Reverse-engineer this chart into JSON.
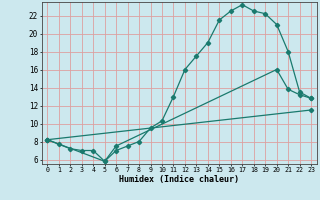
{
  "xlabel": "Humidex (Indice chaleur)",
  "bg_color": "#cce8ee",
  "grid_color": "#dda0a0",
  "line_color": "#1a7a6e",
  "xlim": [
    -0.5,
    23.5
  ],
  "ylim": [
    5.5,
    23.5
  ],
  "xticks": [
    0,
    1,
    2,
    3,
    4,
    5,
    6,
    7,
    8,
    9,
    10,
    11,
    12,
    13,
    14,
    15,
    16,
    17,
    18,
    19,
    20,
    21,
    22,
    23
  ],
  "yticks": [
    6,
    8,
    10,
    12,
    14,
    16,
    18,
    20,
    22
  ],
  "line1_x": [
    0,
    1,
    2,
    3,
    4,
    5,
    6,
    7,
    8,
    9,
    10,
    11,
    12,
    13,
    14,
    15,
    16,
    17,
    18,
    19,
    20,
    21,
    22,
    23
  ],
  "line1_y": [
    8.2,
    7.7,
    7.2,
    7.0,
    7.0,
    5.8,
    7.0,
    7.5,
    8.0,
    9.5,
    10.3,
    13.0,
    16.0,
    17.5,
    19.0,
    21.5,
    22.5,
    23.2,
    22.5,
    22.2,
    21.0,
    18.0,
    13.5,
    12.8
  ],
  "line2_x": [
    0,
    5,
    6,
    20,
    21,
    22,
    23
  ],
  "line2_y": [
    8.2,
    5.8,
    7.5,
    16.0,
    13.8,
    13.2,
    12.8
  ],
  "line3_x": [
    0,
    23
  ],
  "line3_y": [
    8.2,
    11.5
  ]
}
